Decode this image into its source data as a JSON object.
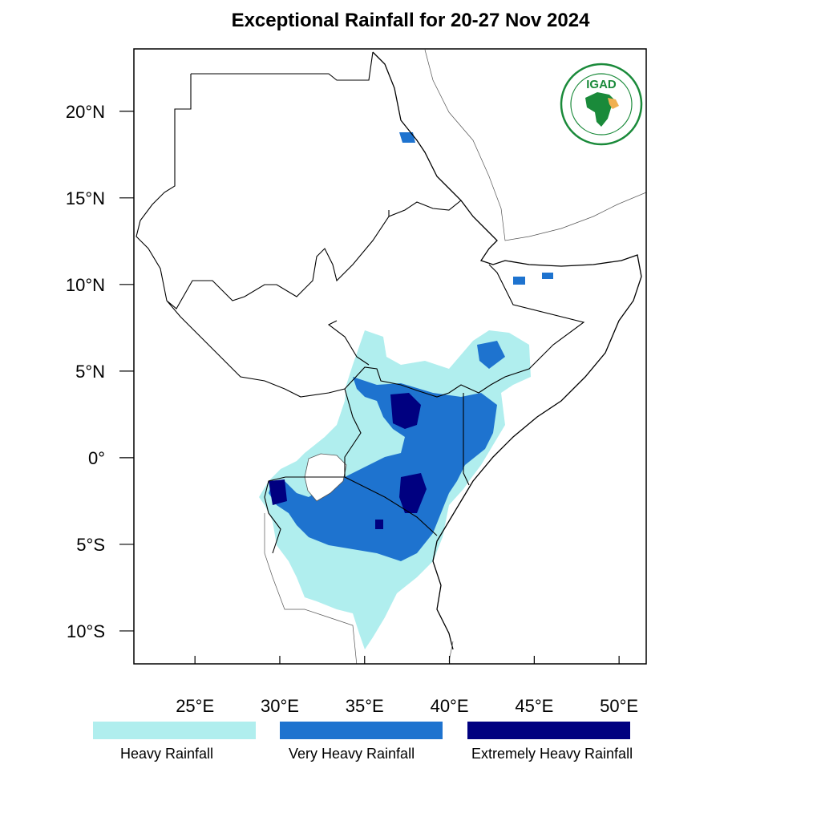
{
  "title": "Exceptional Rainfall for 20-27 Nov 2024",
  "map": {
    "lon_range": [
      21.4,
      51.6
    ],
    "lat_range": [
      -11.9,
      23.6
    ],
    "x_ticks": [
      {
        "lon": 25,
        "label": "25°E"
      },
      {
        "lon": 30,
        "label": "30°E"
      },
      {
        "lon": 35,
        "label": "35°E"
      },
      {
        "lon": 40,
        "label": "40°E"
      },
      {
        "lon": 45,
        "label": "45°E"
      },
      {
        "lon": 50,
        "label": "50°E"
      }
    ],
    "y_ticks": [
      {
        "lat": 20,
        "label": "20°N"
      },
      {
        "lat": 15,
        "label": "15°N"
      },
      {
        "lat": 10,
        "label": "10°N"
      },
      {
        "lat": 5,
        "label": "5°N"
      },
      {
        "lat": 0,
        "label": "0°"
      },
      {
        "lat": -5,
        "label": "5°S"
      },
      {
        "lat": -10,
        "label": "10°S"
      }
    ]
  },
  "legend": [
    {
      "label": "Heavy Rainfall",
      "color": "#b0eeee"
    },
    {
      "label": "Very Heavy Rainfall",
      "color": "#1e73cf"
    },
    {
      "label": "Extremely Heavy Rainfall",
      "color": "#000080"
    }
  ],
  "logo": {
    "text": "IGAD",
    "ring_text_top": "INTERGOVERNMENTAL AUTHORITY ON DEVELOPMENT",
    "ring_text_bottom": "AUTORITÉ INTERGOUVERNEMENTALE POUR LE DÉVELOPPEMENT",
    "color": "#1a8a3a"
  }
}
